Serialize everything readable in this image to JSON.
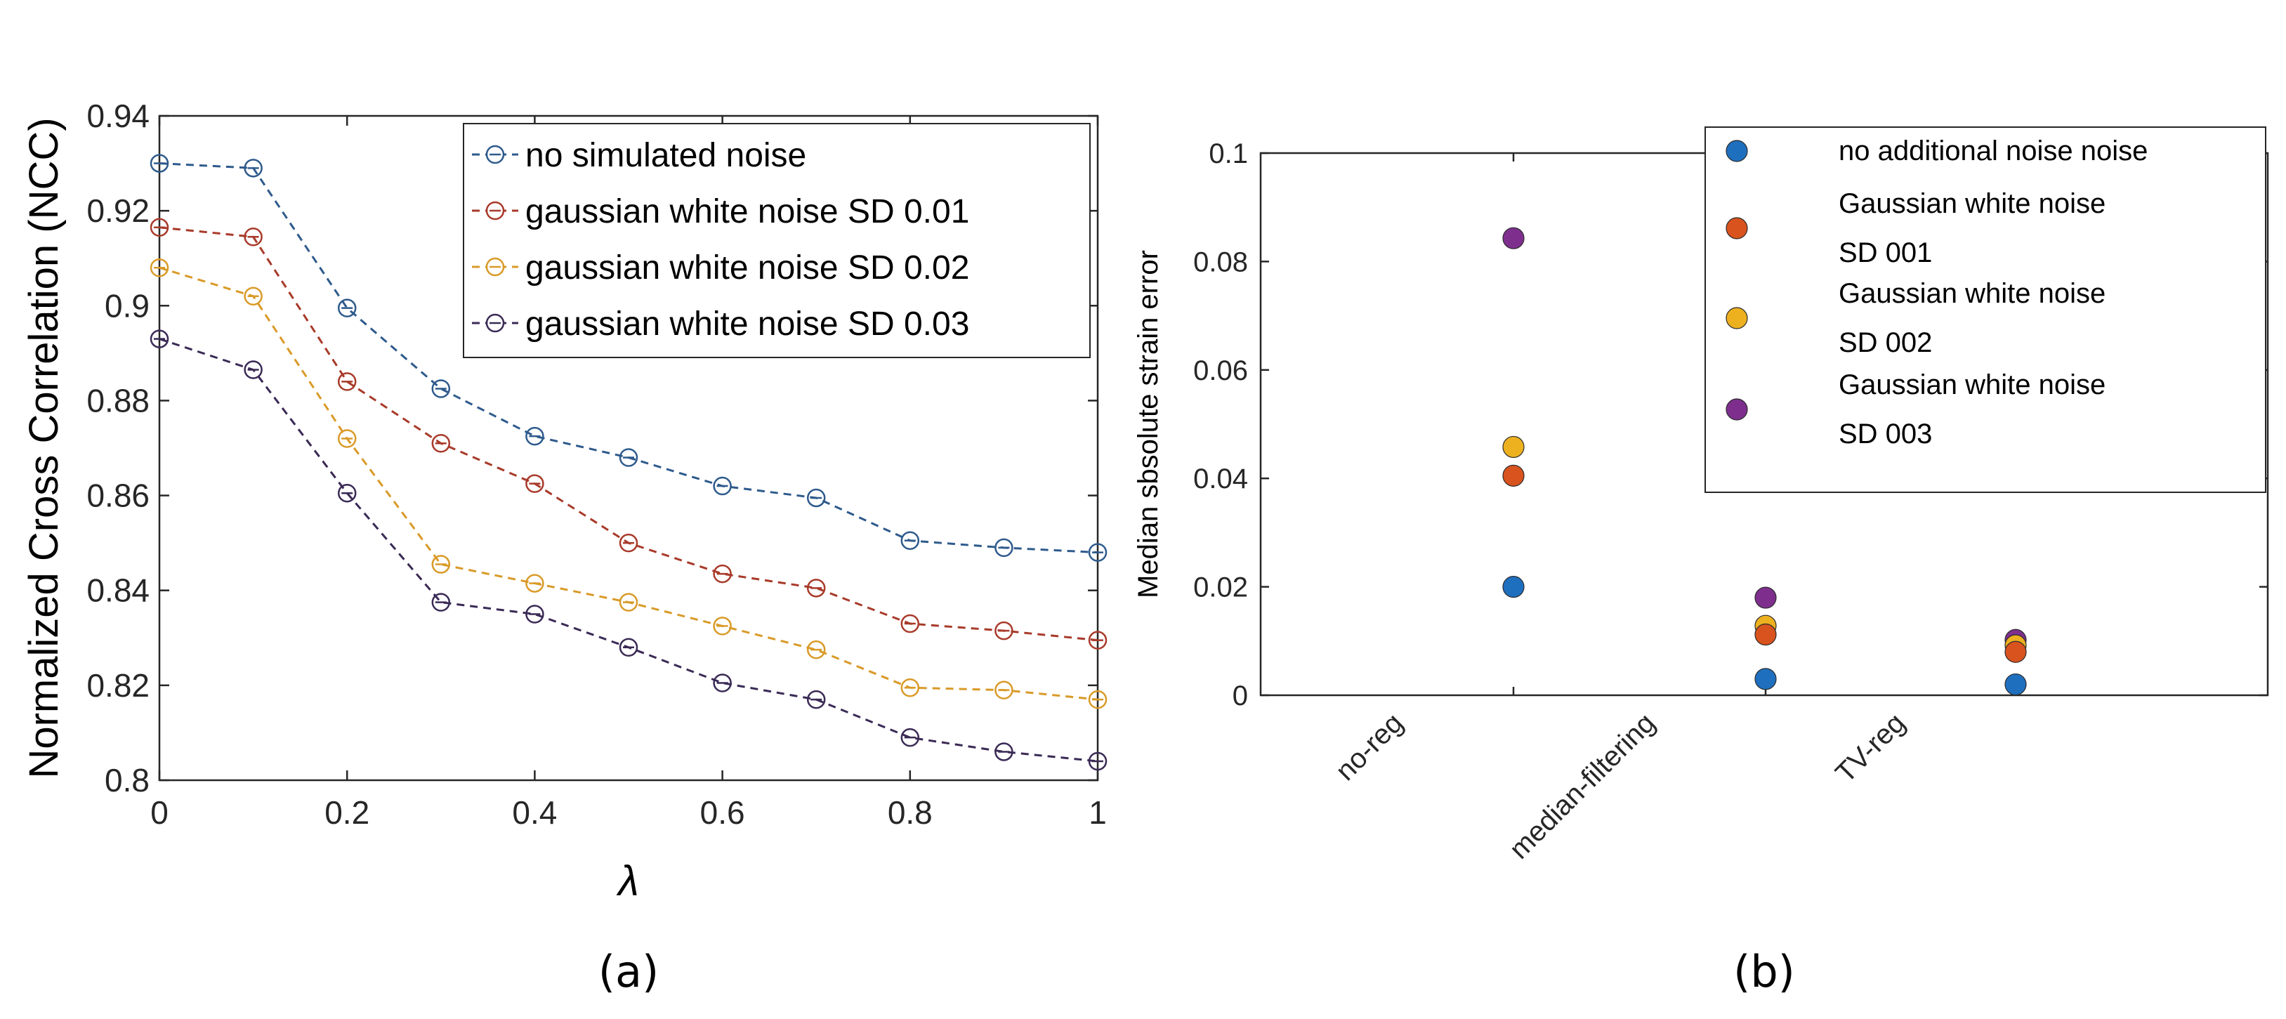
{
  "chart_data": [
    {
      "type": "line",
      "panel_label": "(a)",
      "xlabel": "λ",
      "ylabel": "Normalized Cross Correlation (NCC)",
      "xlim": [
        0,
        1
      ],
      "ylim": [
        0.8,
        0.94
      ],
      "xticks": [
        0,
        0.2,
        0.4,
        0.6,
        0.8,
        1
      ],
      "xtick_labels": [
        "0",
        "0.2",
        "0.4",
        "0.6",
        "0.8",
        "1"
      ],
      "yticks": [
        0.8,
        0.82,
        0.84,
        0.86,
        0.88,
        0.9,
        0.92,
        0.94
      ],
      "ytick_labels": [
        "0.8",
        "0.82",
        "0.84",
        "0.86",
        "0.88",
        "0.9",
        "0.92",
        "0.94"
      ],
      "legend_position": "top-right",
      "x": [
        0,
        0.1,
        0.2,
        0.3,
        0.4,
        0.5,
        0.6,
        0.7,
        0.8,
        0.9,
        1.0
      ],
      "series": [
        {
          "name": "no simulated noise",
          "color": "#2e5a8c",
          "values": [
            0.93,
            0.929,
            0.8995,
            0.8825,
            0.8725,
            0.868,
            0.862,
            0.8595,
            0.8505,
            0.849,
            0.848
          ]
        },
        {
          "name": "gaussian white noise SD 0.01",
          "color": "#a83a2a",
          "values": [
            0.9165,
            0.9145,
            0.884,
            0.871,
            0.8625,
            0.85,
            0.8435,
            0.8405,
            0.833,
            0.8315,
            0.8295
          ]
        },
        {
          "name": "gaussian white noise SD 0.02",
          "color": "#d99a28",
          "values": [
            0.908,
            0.902,
            0.872,
            0.8455,
            0.8415,
            0.8375,
            0.8325,
            0.8275,
            0.8195,
            0.819,
            0.817
          ]
        },
        {
          "name": "gaussian white noise SD 0.03",
          "color": "#3a2a55",
          "values": [
            0.893,
            0.8865,
            0.8605,
            0.8375,
            0.835,
            0.828,
            0.8205,
            0.817,
            0.809,
            0.806,
            0.804
          ]
        }
      ]
    },
    {
      "type": "scatter",
      "panel_label": "(b)",
      "xlabel": "",
      "ylabel": "Median sbsolute strain error",
      "categories": [
        "no-reg",
        "median-filtering",
        "TV-reg"
      ],
      "ylim": [
        0,
        0.1
      ],
      "yticks": [
        0,
        0.02,
        0.04,
        0.06,
        0.08,
        0.1
      ],
      "ytick_labels": [
        "0",
        "0.02",
        "0.04",
        "0.06",
        "0.08",
        "0.1"
      ],
      "legend_position": "top-right",
      "series": [
        {
          "name_lines": [
            "no additional noise noise"
          ],
          "color": "#1f6fbf",
          "values": [
            0.02,
            0.003,
            0.002
          ]
        },
        {
          "name_lines": [
            "Gaussian white noise",
            "SD 001"
          ],
          "color": "#d9531e",
          "values": [
            0.0405,
            0.0112,
            0.008
          ]
        },
        {
          "name_lines": [
            "Gaussian white noise",
            "SD 002"
          ],
          "color": "#edb120",
          "values": [
            0.0458,
            0.0128,
            0.0092
          ]
        },
        {
          "name_lines": [
            "Gaussian white noise",
            "SD 003"
          ],
          "color": "#7e2f8e",
          "values": [
            0.0843,
            0.018,
            0.0102
          ]
        }
      ]
    }
  ]
}
